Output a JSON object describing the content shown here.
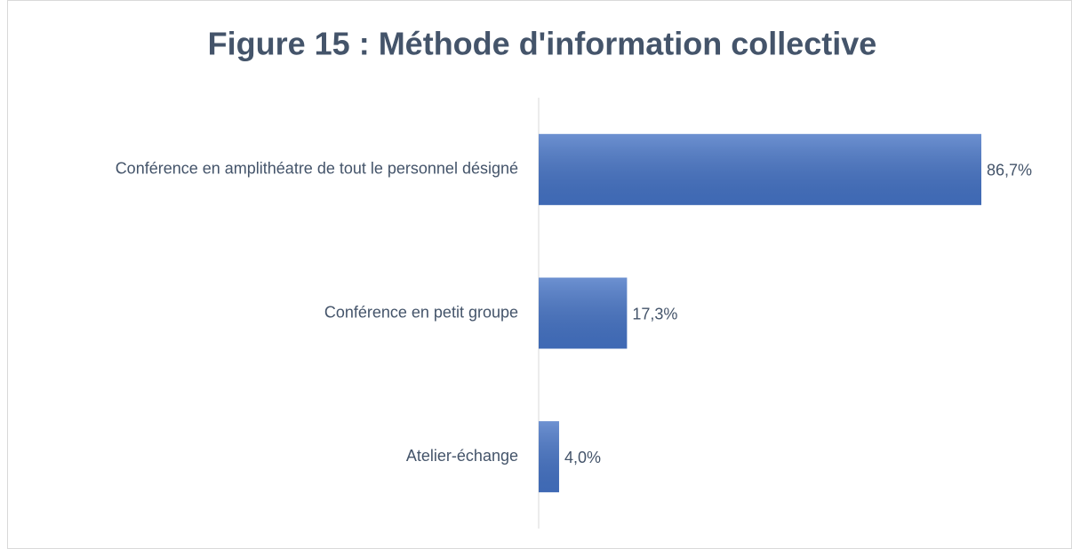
{
  "chart_data": {
    "type": "hbar",
    "title": "Figure 15 : Méthode d'information collective",
    "categories": [
      "Conférence en amplithéatre de tout le personnel désigné",
      "Conférence en petit groupe",
      "Atelier-échange"
    ],
    "values": [
      86.7,
      17.3,
      4.0
    ],
    "value_labels": [
      "86,7%",
      "17,3%",
      "4,0%"
    ],
    "color": "#4472c4"
  }
}
